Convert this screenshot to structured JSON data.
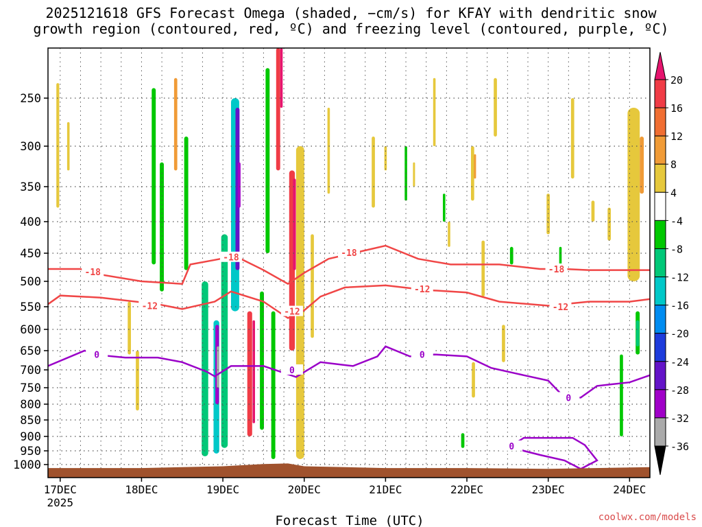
{
  "chart_data": {
    "type": "heatmap",
    "title_line1": "2025121618 GFS Forecast Omega (shaded, −cm/s) for KFAY with dendritic snow",
    "title_line2": "growth region (contoured, red, ºC) and freezing level (contoured, purple, ºC)",
    "xlabel": "Forecast Time (UTC)",
    "ylabel": "",
    "x_ticks": [
      "17DEC",
      "18DEC",
      "19DEC",
      "20DEC",
      "21DEC",
      "22DEC",
      "23DEC",
      "24DEC"
    ],
    "x_year_label": "2025",
    "xlim_days": [
      16.85,
      24.25
    ],
    "y_ticks": [
      250,
      300,
      350,
      400,
      450,
      500,
      550,
      600,
      650,
      700,
      750,
      800,
      850,
      900,
      950,
      1000
    ],
    "ylim_hpa": [
      1015,
      200
    ],
    "colorbar": {
      "ticks": [
        20,
        16,
        12,
        8,
        4,
        -4,
        -8,
        -12,
        -16,
        -20,
        -24,
        -28,
        -32,
        -36
      ],
      "bins": [
        {
          "lo": 16,
          "hi": 20,
          "color": "#f03c46"
        },
        {
          "lo": 12,
          "hi": 16,
          "color": "#f06e32"
        },
        {
          "lo": 8,
          "hi": 12,
          "color": "#f09b37"
        },
        {
          "lo": 4,
          "hi": 8,
          "color": "#e6c83c"
        },
        {
          "lo": -4,
          "hi": 4,
          "color": "#ffffff"
        },
        {
          "lo": -8,
          "hi": -4,
          "color": "#00c800"
        },
        {
          "lo": -12,
          "hi": -8,
          "color": "#00c878"
        },
        {
          "lo": -16,
          "hi": -12,
          "color": "#00c8c8"
        },
        {
          "lo": -20,
          "hi": -16,
          "color": "#008cf0"
        },
        {
          "lo": -24,
          "hi": -20,
          "color": "#1e3cdc"
        },
        {
          "lo": -28,
          "hi": -24,
          "color": "#6414c8"
        },
        {
          "lo": -32,
          "hi": -28,
          "color": "#a000c8"
        },
        {
          "lo": -36,
          "hi": -32,
          "color": "#aaaaaa"
        }
      ],
      "over_color": "#e6146e",
      "under_color": "#000000"
    },
    "colors": {
      "snow_growth_contour": "#f04646",
      "freezing_contour": "#9a00c8",
      "ground": "#a0522d",
      "grid": "#555555"
    },
    "contour_labels": {
      "minus18": "-18",
      "minus12": "-12",
      "zero": "0"
    },
    "minus18_contour": [
      [
        16.85,
        478
      ],
      [
        17.25,
        478
      ],
      [
        17.5,
        488
      ],
      [
        18.0,
        500
      ],
      [
        18.5,
        505
      ],
      [
        18.6,
        470
      ],
      [
        18.9,
        462
      ],
      [
        19.15,
        455
      ],
      [
        19.5,
        480
      ],
      [
        19.8,
        505
      ],
      [
        20.0,
        485
      ],
      [
        20.3,
        460
      ],
      [
        20.6,
        450
      ],
      [
        21.0,
        438
      ],
      [
        21.4,
        460
      ],
      [
        21.8,
        470
      ],
      [
        22.4,
        470
      ],
      [
        22.9,
        478
      ],
      [
        23.2,
        478
      ],
      [
        23.5,
        480
      ],
      [
        24.25,
        480
      ]
    ],
    "minus12_contour": [
      [
        16.85,
        545
      ],
      [
        17.0,
        528
      ],
      [
        17.5,
        532
      ],
      [
        18.2,
        545
      ],
      [
        18.5,
        555
      ],
      [
        18.9,
        540
      ],
      [
        19.1,
        520
      ],
      [
        19.5,
        540
      ],
      [
        19.8,
        575
      ],
      [
        20.0,
        558
      ],
      [
        20.2,
        530
      ],
      [
        20.5,
        512
      ],
      [
        21.0,
        508
      ],
      [
        21.5,
        517
      ],
      [
        22.0,
        522
      ],
      [
        22.4,
        540
      ],
      [
        23.0,
        548
      ],
      [
        23.5,
        540
      ],
      [
        24.0,
        540
      ],
      [
        24.25,
        535
      ]
    ],
    "zero_contour": [
      [
        16.85,
        690
      ],
      [
        17.3,
        650
      ],
      [
        17.5,
        662
      ],
      [
        17.8,
        668
      ],
      [
        18.2,
        668
      ],
      [
        18.5,
        680
      ],
      [
        18.8,
        705
      ],
      [
        18.9,
        718
      ],
      [
        19.1,
        690
      ],
      [
        19.5,
        690
      ],
      [
        19.9,
        720
      ],
      [
        20.2,
        680
      ],
      [
        20.6,
        690
      ],
      [
        20.9,
        665
      ],
      [
        21.0,
        640
      ],
      [
        21.3,
        665
      ],
      [
        21.6,
        660
      ],
      [
        22.0,
        665
      ],
      [
        22.3,
        695
      ],
      [
        22.6,
        710
      ],
      [
        23.0,
        730
      ],
      [
        23.2,
        780
      ],
      [
        23.4,
        780
      ],
      [
        23.6,
        745
      ],
      [
        24.0,
        735
      ],
      [
        24.25,
        715
      ]
    ],
    "closed_contour_zero": [
      [
        22.55,
        932
      ],
      [
        22.7,
        905
      ],
      [
        22.9,
        905
      ],
      [
        23.1,
        905
      ],
      [
        23.3,
        905
      ],
      [
        23.45,
        930
      ],
      [
        23.6,
        985
      ],
      [
        23.4,
        1005
      ],
      [
        23.2,
        985
      ],
      [
        22.9,
        965
      ],
      [
        22.7,
        950
      ],
      [
        22.55,
        932
      ]
    ],
    "ground_surface": [
      [
        16.85,
        1004
      ],
      [
        18.0,
        1004
      ],
      [
        19.0,
        1002
      ],
      [
        19.5,
        998
      ],
      [
        19.8,
        996
      ],
      [
        20.0,
        1002
      ],
      [
        21.0,
        1004
      ],
      [
        22.0,
        1004
      ],
      [
        23.0,
        1005
      ],
      [
        24.25,
        1003
      ]
    ],
    "omega_features": [
      {
        "t": 16.97,
        "p0": 235,
        "p1": 380,
        "w": 0.035,
        "v": 5
      },
      {
        "t": 17.1,
        "p0": 275,
        "p1": 330,
        "w": 0.03,
        "v": 5
      },
      {
        "t": 17.85,
        "p0": 540,
        "p1": 660,
        "w": 0.04,
        "v": 6
      },
      {
        "t": 17.95,
        "p0": 650,
        "p1": 820,
        "w": 0.04,
        "v": 6
      },
      {
        "t": 18.15,
        "p0": 240,
        "p1": 470,
        "w": 0.05,
        "v": -6
      },
      {
        "t": 18.25,
        "p0": 320,
        "p1": 520,
        "w": 0.05,
        "v": -6
      },
      {
        "t": 18.42,
        "p0": 230,
        "p1": 330,
        "w": 0.04,
        "v": 8
      },
      {
        "t": 18.55,
        "p0": 290,
        "p1": 480,
        "w": 0.05,
        "v": -6
      },
      {
        "t": 18.78,
        "p0": 500,
        "p1": 970,
        "w": 0.08,
        "v": -9
      },
      {
        "t": 18.92,
        "p0": 580,
        "p1": 960,
        "w": 0.07,
        "v": -14
      },
      {
        "t": 18.94,
        "p0": 640,
        "p1": 750,
        "w": 0.03,
        "v": -34
      },
      {
        "t": 18.93,
        "p0": 590,
        "p1": 800,
        "w": 0.045,
        "v": -29
      },
      {
        "t": 19.02,
        "p0": 420,
        "p1": 940,
        "w": 0.08,
        "v": -10
      },
      {
        "t": 19.15,
        "p0": 250,
        "p1": 560,
        "w": 0.1,
        "v": -14
      },
      {
        "t": 19.18,
        "p0": 260,
        "p1": 480,
        "w": 0.05,
        "v": -25
      },
      {
        "t": 19.2,
        "p0": 320,
        "p1": 380,
        "w": 0.035,
        "v": -30
      },
      {
        "t": 19.33,
        "p0": 560,
        "p1": 900,
        "w": 0.06,
        "v": 17
      },
      {
        "t": 19.38,
        "p0": 580,
        "p1": 860,
        "w": 0.03,
        "v": 22
      },
      {
        "t": 19.48,
        "p0": 520,
        "p1": 880,
        "w": 0.05,
        "v": -8
      },
      {
        "t": 19.55,
        "p0": 220,
        "p1": 450,
        "w": 0.05,
        "v": -7
      },
      {
        "t": 19.68,
        "p0": 200,
        "p1": 330,
        "w": 0.05,
        "v": 16
      },
      {
        "t": 19.72,
        "p0": 200,
        "p1": 260,
        "w": 0.03,
        "v": 22
      },
      {
        "t": 19.62,
        "p0": 560,
        "p1": 980,
        "w": 0.05,
        "v": -8
      },
      {
        "t": 19.85,
        "p0": 330,
        "p1": 650,
        "w": 0.07,
        "v": 16
      },
      {
        "t": 19.88,
        "p0": 340,
        "p1": 480,
        "w": 0.035,
        "v": 22
      },
      {
        "t": 19.95,
        "p0": 300,
        "p1": 980,
        "w": 0.1,
        "v": 6
      },
      {
        "t": 20.1,
        "p0": 420,
        "p1": 620,
        "w": 0.04,
        "v": 6
      },
      {
        "t": 20.3,
        "p0": 260,
        "p1": 360,
        "w": 0.03,
        "v": 5
      },
      {
        "t": 20.85,
        "p0": 290,
        "p1": 380,
        "w": 0.04,
        "v": 5
      },
      {
        "t": 21.0,
        "p0": 300,
        "p1": 330,
        "w": 0.03,
        "v": 5
      },
      {
        "t": 21.25,
        "p0": 300,
        "p1": 370,
        "w": 0.03,
        "v": -6
      },
      {
        "t": 21.35,
        "p0": 320,
        "p1": 350,
        "w": 0.025,
        "v": 5
      },
      {
        "t": 21.6,
        "p0": 230,
        "p1": 300,
        "w": 0.03,
        "v": 5
      },
      {
        "t": 21.72,
        "p0": 360,
        "p1": 400,
        "w": 0.03,
        "v": -6
      },
      {
        "t": 21.78,
        "p0": 400,
        "p1": 440,
        "w": 0.03,
        "v": 5
      },
      {
        "t": 21.95,
        "p0": 890,
        "p1": 940,
        "w": 0.04,
        "v": -6
      },
      {
        "t": 22.07,
        "p0": 300,
        "p1": 370,
        "w": 0.04,
        "v": 6
      },
      {
        "t": 22.1,
        "p0": 310,
        "p1": 340,
        "w": 0.025,
        "v": 9
      },
      {
        "t": 22.2,
        "p0": 430,
        "p1": 530,
        "w": 0.04,
        "v": 5
      },
      {
        "t": 22.35,
        "p0": 230,
        "p1": 290,
        "w": 0.04,
        "v": 5
      },
      {
        "t": 22.55,
        "p0": 440,
        "p1": 470,
        "w": 0.04,
        "v": -6
      },
      {
        "t": 22.08,
        "p0": 680,
        "p1": 780,
        "w": 0.04,
        "v": 6
      },
      {
        "t": 22.45,
        "p0": 590,
        "p1": 680,
        "w": 0.04,
        "v": 5
      },
      {
        "t": 23.0,
        "p0": 360,
        "p1": 420,
        "w": 0.04,
        "v": 5
      },
      {
        "t": 23.15,
        "p0": 440,
        "p1": 470,
        "w": 0.03,
        "v": -6
      },
      {
        "t": 23.3,
        "p0": 250,
        "p1": 340,
        "w": 0.04,
        "v": 5
      },
      {
        "t": 23.55,
        "p0": 370,
        "p1": 400,
        "w": 0.04,
        "v": 5
      },
      {
        "t": 23.75,
        "p0": 380,
        "p1": 430,
        "w": 0.04,
        "v": 5
      },
      {
        "t": 23.9,
        "p0": 660,
        "p1": 900,
        "w": 0.04,
        "v": -6
      },
      {
        "t": 24.1,
        "p0": 580,
        "p1": 640,
        "w": 0.04,
        "v": -12
      },
      {
        "t": 24.1,
        "p0": 560,
        "p1": 660,
        "w": 0.05,
        "v": -6
      },
      {
        "t": 24.05,
        "p0": 260,
        "p1": 500,
        "w": 0.15,
        "v": 6
      },
      {
        "t": 24.15,
        "p0": 290,
        "p1": 360,
        "w": 0.05,
        "v": 10
      }
    ]
  },
  "footer": {
    "credit": "coolwx.com/models"
  }
}
